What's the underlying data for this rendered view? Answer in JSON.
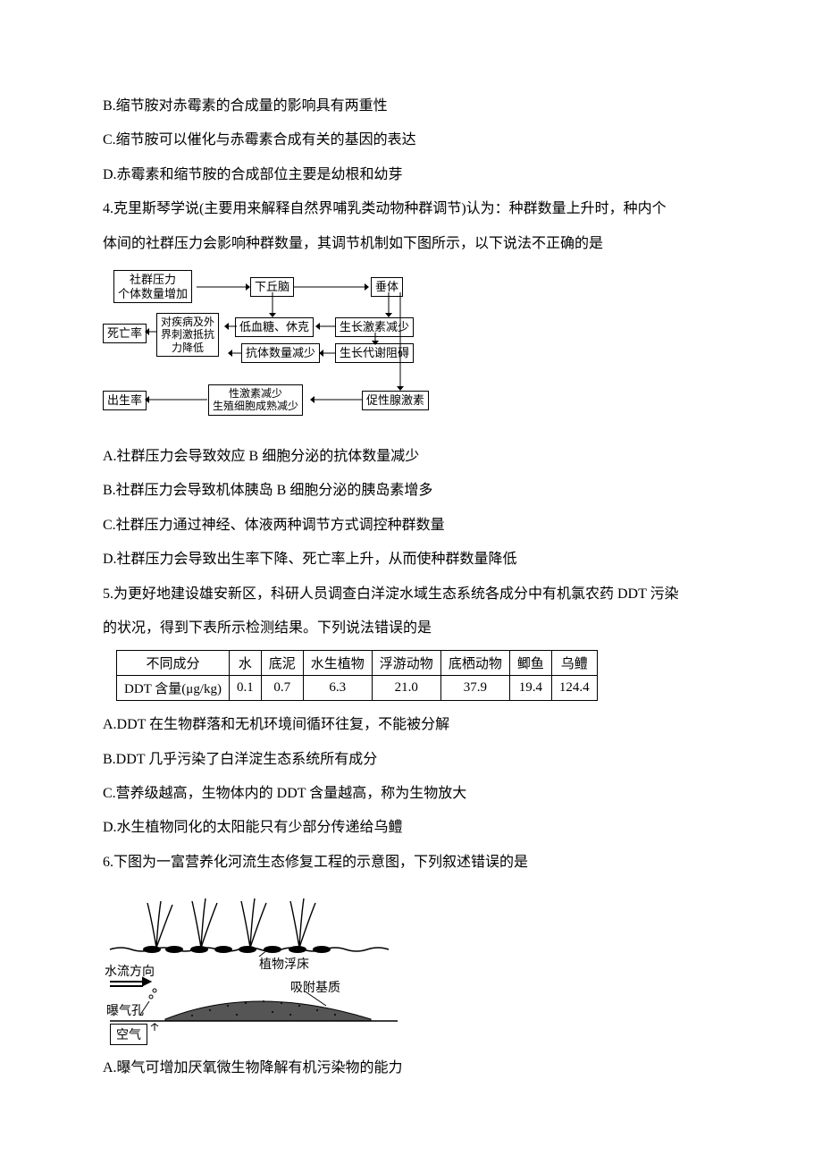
{
  "lines": {
    "b": "B.缩节胺对赤霉素的合成量的影响具有两重性",
    "c": "C.缩节胺可以催化与赤霉素合成有关的基因的表达",
    "d": "D.赤霉素和缩节胺的合成部位主要是幼根和幼芽",
    "q4_stem1": "4.克里斯琴学说(主要用来解释自然界哺乳类动物种群调节)认为：种群数量上升时，种内个",
    "q4_stem2": "体间的社群压力会影响种群数量，其调节机制如下图所示，以下说法不正确的是",
    "q4a": "A.社群压力会导致效应 B 细胞分泌的抗体数量减少",
    "q4b": "B.社群压力会导致机体胰岛 B 细胞分泌的胰岛素增多",
    "q4c": "C.社群压力通过神经、体液两种调节方式调控种群数量",
    "q4d": "D.社群压力会导致出生率下降、死亡率上升，从而使种群数量降低",
    "q5_stem1": "5.为更好地建设雄安新区，科研人员调查白洋淀水域生态系统各成分中有机氯农药 DDT 污染",
    "q5_stem2": "的状况，得到下表所示检测结果。下列说法错误的是",
    "q5a": "A.DDT 在生物群落和无机环境间循环往复，不能被分解",
    "q5b": "B.DDT 几乎污染了白洋淀生态系统所有成分",
    "q5c": "C.营养级越高，生物体内的 DDT 含量越高，称为生物放大",
    "q5d": "D.水生植物同化的太阳能只有少部分传递给乌鳢",
    "q6_stem": "6.下图为一富营养化河流生态修复工程的示意图，下列叙述错误的是",
    "q6a": "A.曝气可增加厌氧微生物降解有机污染物的能力"
  },
  "flowchart": {
    "boxes": {
      "pressure": "社群压力\n个体数量增加",
      "hypothalamus": "下丘脑",
      "pituitary": "垂体",
      "death": "死亡率",
      "resist": "对疾病及外\n界刺激抵抗\n力降低",
      "lowsugar": "低血糖、休克",
      "gh": "生长激素减少",
      "antibody": "抗体数量减少",
      "metabolism": "生长代谢阻碍",
      "birth": "出生率",
      "sex": "性激素减少\n生殖细胞成熟减少",
      "gnrh": "促性腺激素"
    }
  },
  "table": {
    "header": [
      "不同成分",
      "水",
      "底泥",
      "水生植物",
      "浮游动物",
      "底栖动物",
      "鲫鱼",
      "乌鳢"
    ],
    "rowlabel": "DDT 含量(μg/kg)",
    "values": [
      "0.1",
      "0.7",
      "6.3",
      "21.0",
      "37.9",
      "19.4",
      "124.4"
    ]
  },
  "river": {
    "flow_dir": "水流方向",
    "float_bed": "植物浮床",
    "substrate": "吸附基质",
    "aeration": "曝气孔",
    "air": "空气"
  },
  "colors": {
    "text": "#000000",
    "background": "#ffffff",
    "border": "#000000"
  }
}
